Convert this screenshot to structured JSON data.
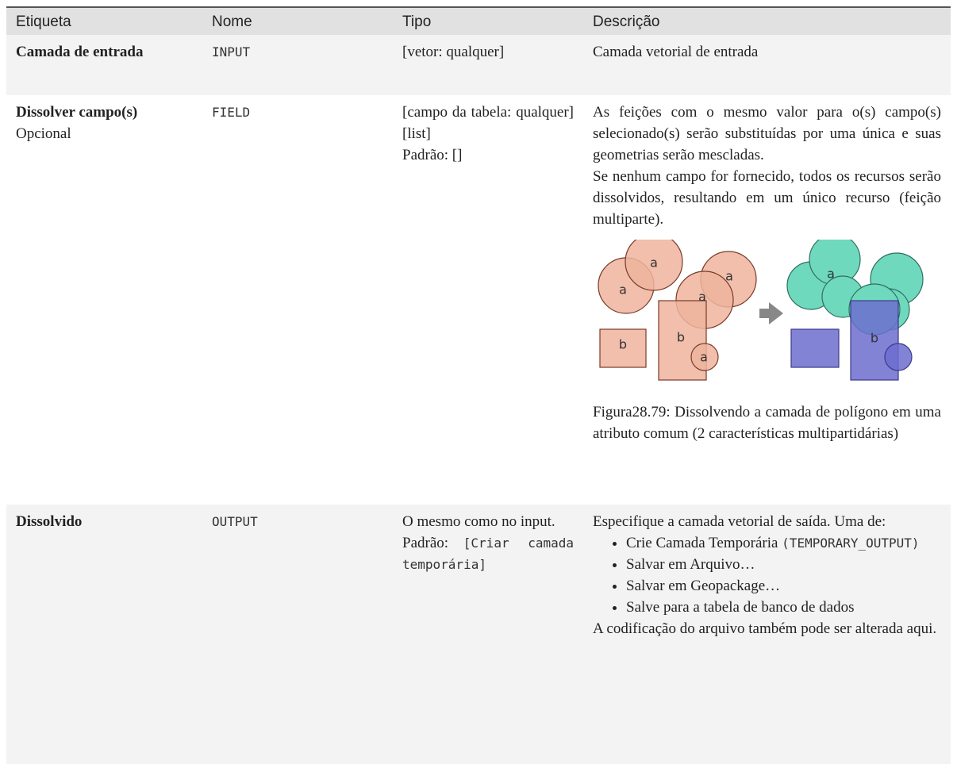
{
  "table": {
    "header": [
      "Etiqueta",
      "Nome",
      "Tipo",
      "Descrição"
    ],
    "rows": [
      {
        "label": "Camada de entrada",
        "name": "INPUT",
        "type": "[vetor: qualquer]",
        "description": "Camada vetorial de entrada"
      },
      {
        "label": "Dissolver campo(s)",
        "optional": "Opcional",
        "name": "FIELD",
        "type": "[campo da tabela: qualquer][list]",
        "default": "Padrão: []",
        "description": [
          "As feições com o mesmo valor para o(s) campo(s) selecionado(s) serão substituídas por uma única e suas geometrias serão mescladas.",
          "Se nenhum campo for fornecido, todos os recursos serão dissolvidos, resultando em um único recurso (feição multiparte)."
        ],
        "figure": {
          "labels": [
            "a",
            "a",
            "a",
            "a",
            "b",
            "b",
            "a",
            "a",
            "b"
          ],
          "caption": "Figura28.79: Dissolvendo a camada de polígono em uma atributo comum (2 características multipartidárias)"
        }
      },
      {
        "label": "Dissolvido",
        "name": "OUTPUT",
        "type": "O mesmo como no input.",
        "default_label": "Padrão:",
        "default_value": "[Criar camada temporária]",
        "description_intro": "Especifique a camada vetorial de saída. Uma de:",
        "options": [
          "Crie Camada Temporária",
          "Salvar em Arquivo…",
          "Salvar em Geopackage…",
          "Salve para a tabela de banco de dados"
        ],
        "option_code": "(TEMPORARY_OUTPUT)",
        "description_outro": "A codificação do arquivo também pode ser alterada aqui."
      }
    ]
  }
}
